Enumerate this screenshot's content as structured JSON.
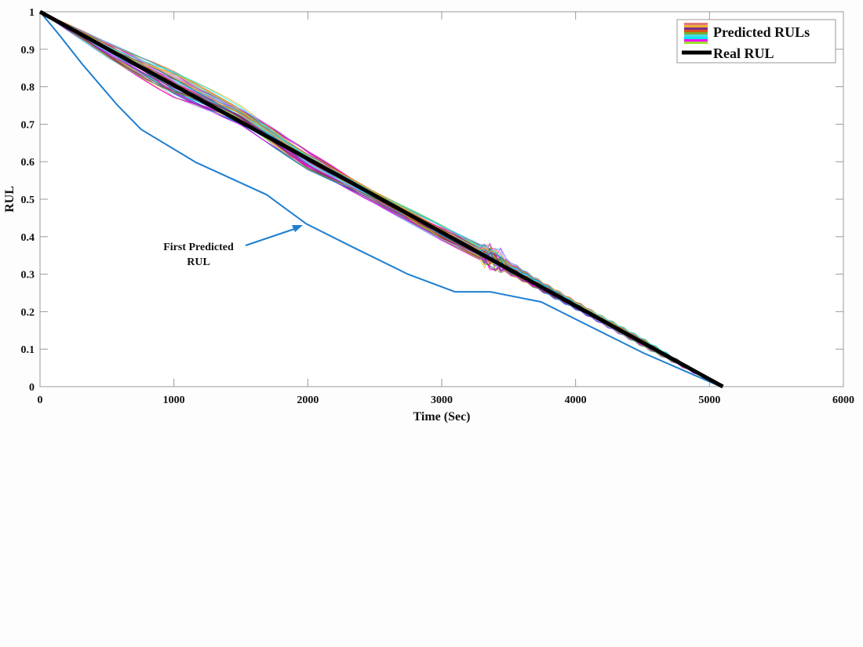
{
  "chart_data": {
    "type": "line",
    "title": "",
    "xlabel": "Time (Sec)",
    "ylabel": "RUL",
    "xlim": [
      0,
      6000
    ],
    "ylim": [
      0,
      1
    ],
    "xticks": [
      0,
      1000,
      2000,
      3000,
      4000,
      5000,
      6000
    ],
    "yticks": [
      0,
      0.1,
      0.2,
      0.3,
      0.4,
      0.5,
      0.6,
      0.7,
      0.8,
      0.9,
      1
    ],
    "ytick_labels": [
      "0",
      "0.1",
      "0.2",
      "0.3",
      "0.4",
      "0.5",
      "0.6",
      "0.7",
      "0.8",
      "0.9",
      "1"
    ],
    "grid": false,
    "legend": {
      "position": "upper right",
      "entries": [
        {
          "label": "Predicted RULs",
          "swatch": "multicolor-stripes"
        },
        {
          "label": "Real RUL",
          "swatch": "thick-black-line"
        }
      ]
    },
    "series": [
      {
        "name": "Real RUL",
        "color": "#000000",
        "line_width": 5,
        "x": [
          0,
          5100
        ],
        "y": [
          1.0,
          0.0
        ]
      },
      {
        "name": "First Predicted RUL",
        "color": "#1f7fd0",
        "line_width": 2,
        "x": [
          0,
          140,
          316,
          580,
          756,
          1166,
          1693,
          1986,
          2337,
          2747,
          3099,
          3363,
          3743,
          4095,
          4505,
          5085
        ],
        "y": [
          1.0,
          0.94,
          0.86,
          0.75,
          0.686,
          0.598,
          0.512,
          0.435,
          0.372,
          0.3,
          0.253,
          0.253,
          0.226,
          0.163,
          0.09,
          0.0
        ]
      },
      {
        "name": "Predicted RULs",
        "description": "Bundle of ~50 multicolored predicted RUL curves fluctuating around the real RUL line, widest spread (about ±0.05) between 0 and 2000 s, converging to the real line after ~3500 s, with a small spike near 3400 s",
        "colors": [
          "#0072bd",
          "#d95319",
          "#edb120",
          "#7e2f8e",
          "#77ac30",
          "#4dbeee",
          "#a2142f",
          "#ff00ff",
          "#00ffff",
          "#c0a0ff"
        ],
        "band_x": [
          0,
          500,
          1000,
          1500,
          2000,
          2500,
          3000,
          3400,
          4000,
          4500,
          5100
        ],
        "band_upper": [
          1.0,
          0.92,
          0.84,
          0.75,
          0.63,
          0.52,
          0.43,
          0.36,
          0.23,
          0.13,
          0.0
        ],
        "band_lower": [
          1.0,
          0.88,
          0.77,
          0.7,
          0.58,
          0.49,
          0.39,
          0.32,
          0.21,
          0.11,
          0.0
        ]
      }
    ],
    "annotations": [
      {
        "text_line1": "First Predicted",
        "text_line2": "RUL",
        "text_x": 1190,
        "text_y": 0.37,
        "arrow_to_x": 1970,
        "arrow_to_y": 0.43,
        "color": "#1f7fd0"
      }
    ]
  }
}
